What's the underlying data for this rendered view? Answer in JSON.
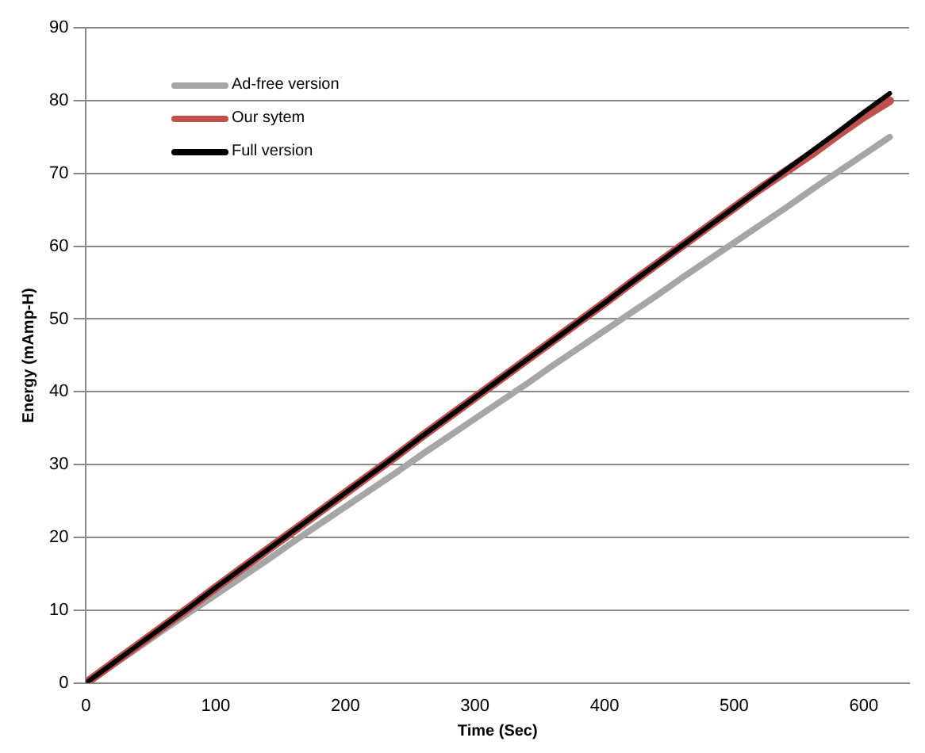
{
  "chart_data": {
    "type": "line",
    "xlabel": "Time (Sec)",
    "ylabel": "Energy (mAmp-H)",
    "x": [
      0,
      20,
      40,
      60,
      80,
      100,
      120,
      140,
      160,
      180,
      200,
      220,
      240,
      260,
      280,
      300,
      320,
      340,
      360,
      380,
      400,
      420,
      440,
      460,
      480,
      500,
      520,
      540,
      560,
      580,
      600,
      620
    ],
    "series": [
      {
        "name": "Ad-free version",
        "color": "#a6a6a6",
        "values": [
          0,
          2.4,
          4.8,
          7.3,
          9.7,
          12.1,
          14.5,
          16.9,
          19.4,
          21.8,
          24.2,
          26.6,
          29,
          31.5,
          33.9,
          36.3,
          38.7,
          41.1,
          43.6,
          46,
          48.4,
          50.8,
          53.2,
          55.7,
          58.1,
          60.5,
          62.9,
          65.3,
          67.8,
          70.2,
          72.6,
          75
        ]
      },
      {
        "name": "Our sytem",
        "color": "#c0504d",
        "values": [
          0,
          2.6,
          5.2,
          7.8,
          10.4,
          13.1,
          15.7,
          18.3,
          20.9,
          23.5,
          26.1,
          28.7,
          31.3,
          34,
          36.6,
          39.2,
          41.8,
          44.4,
          47,
          49.6,
          52.2,
          54.9,
          57.5,
          60.1,
          62.7,
          65.3,
          67.9,
          70.3,
          72.7,
          75.3,
          77.8,
          80
        ]
      },
      {
        "name": "Full version",
        "color": "#000000",
        "values": [
          0,
          2.6,
          5.2,
          7.8,
          10.4,
          13.1,
          15.7,
          18.3,
          20.9,
          23.5,
          26.1,
          28.7,
          31.3,
          34,
          36.6,
          39.2,
          41.8,
          44.4,
          47,
          49.6,
          52.2,
          54.9,
          57.5,
          60.1,
          62.7,
          65.3,
          67.9,
          70.5,
          73.1,
          75.7,
          78.4,
          81
        ]
      }
    ],
    "xlim": [
      0,
      635
    ],
    "xticks": [
      0,
      100,
      200,
      300,
      400,
      500,
      600
    ],
    "ylim": [
      0,
      90
    ],
    "yticks": [
      0,
      10,
      20,
      30,
      40,
      50,
      60,
      70,
      80,
      90
    ],
    "grid": "y",
    "legend": "top left",
    "marker": "none",
    "line_style": "solid"
  }
}
